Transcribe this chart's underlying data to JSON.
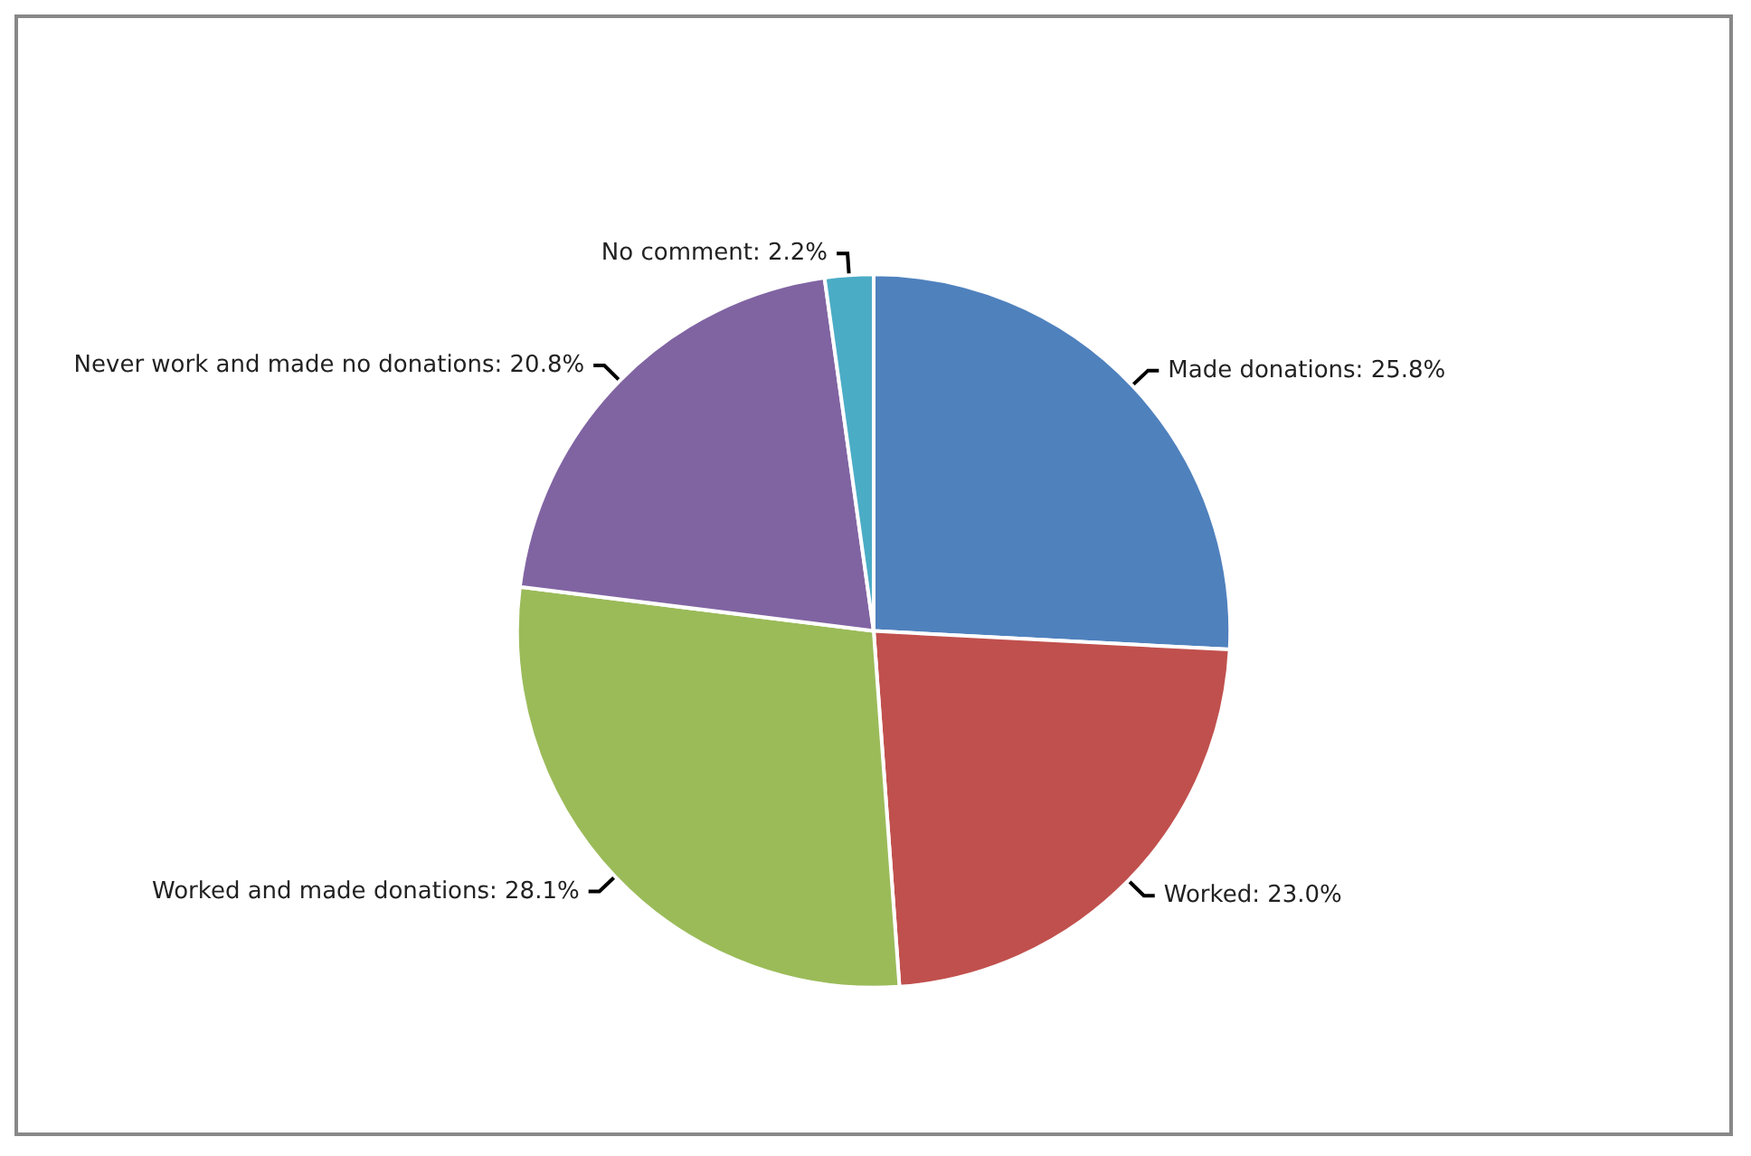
{
  "chart_data": {
    "type": "pie",
    "categories": [
      "Made donations",
      "Worked",
      "Worked and made donations",
      "Never work and made no donations",
      "No comment"
    ],
    "values": [
      25.8,
      23.0,
      28.1,
      20.8,
      2.2
    ],
    "value_labels": [
      "25.8%",
      "23.0%",
      "28.1%",
      "20.8%",
      "2.2%"
    ],
    "colors": [
      "#4f81bd",
      "#c0504d",
      "#9bbb59",
      "#8064a2",
      "#4bacc6"
    ],
    "legend": false
  }
}
